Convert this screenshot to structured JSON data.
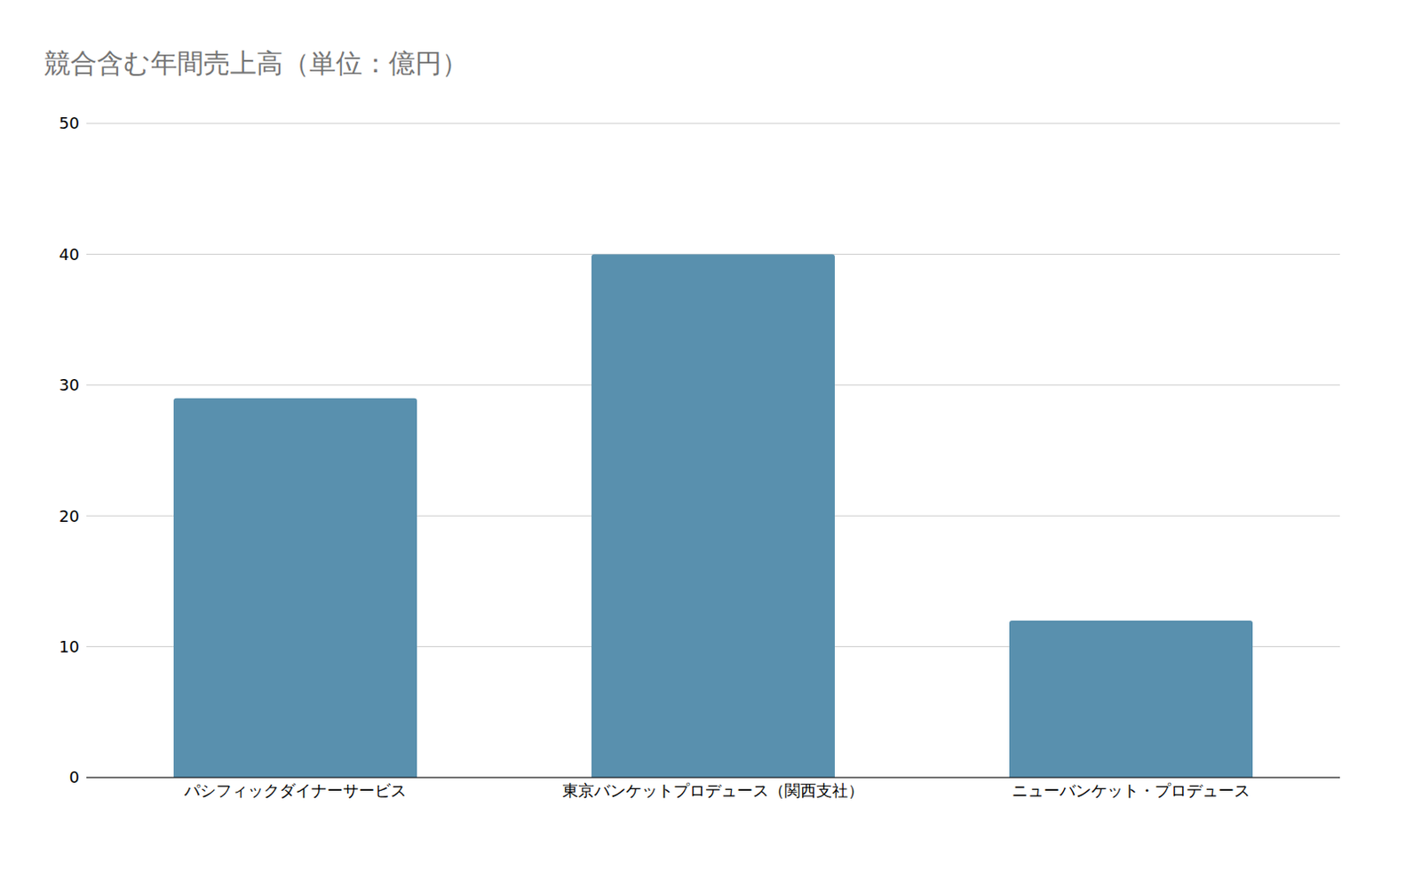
{
  "chart_data": {
    "type": "bar",
    "title": "競合含む年間売上高（単位：億円）",
    "categories": [
      "パシフィックダイナーサービス",
      "東京バンケットプロデュース（関西支社）",
      "ニューバンケット・プロデュース"
    ],
    "values": [
      29,
      40,
      12
    ],
    "color": "#5990ae",
    "ylim": [
      0,
      50
    ],
    "yticks": [
      0,
      10,
      20,
      30,
      40,
      50
    ],
    "grid": true
  }
}
